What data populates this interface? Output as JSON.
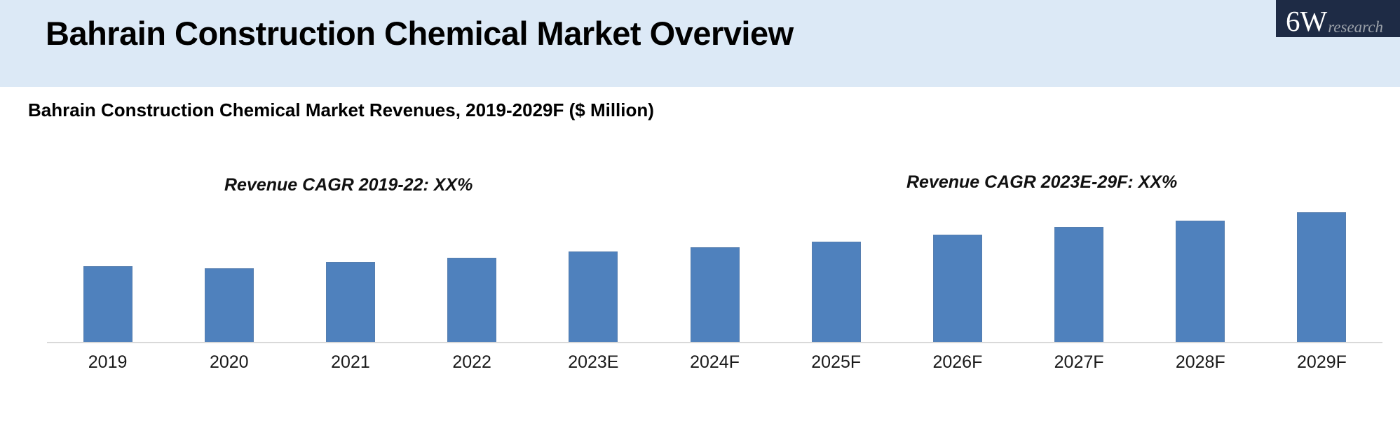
{
  "header": {
    "title": "Bahrain Construction Chemical Market Overview",
    "bg_color": "#dce9f6"
  },
  "logo": {
    "main": "6W",
    "sub": "research",
    "bg_color": "#1e2b45",
    "main_color": "#ffffff",
    "sub_color": "#9aa0a8"
  },
  "chart_heading": "Bahrain Construction Chemical Market Revenues, 2019-2029F ($ Million)",
  "annotations": {
    "left": "Revenue CAGR 2019-22: XX%",
    "right": "Revenue CAGR 2023E-29F: XX%"
  },
  "chart_data": {
    "type": "bar",
    "title": "Bahrain Construction Chemical Market Revenues, 2019-2029F ($ Million)",
    "categories": [
      "2019",
      "2020",
      "2021",
      "2022",
      "2023E",
      "2024F",
      "2025F",
      "2026F",
      "2027F",
      "2028F",
      "2029F"
    ],
    "values": [
      100,
      97,
      106,
      111,
      119,
      125,
      132,
      142,
      152,
      160,
      171
    ],
    "value_note": "Relative index estimated from bar heights (2019 = 100); chart displays no numeric y-axis and CAGR figures are masked as XX%",
    "xlabel": "",
    "ylabel": "",
    "ylim": [
      0,
      180
    ],
    "grid": false,
    "legend": false,
    "bar_color": "#4f81bd",
    "axis_line_color": "#d9d9d9",
    "label_color": "#1a1a1a"
  }
}
